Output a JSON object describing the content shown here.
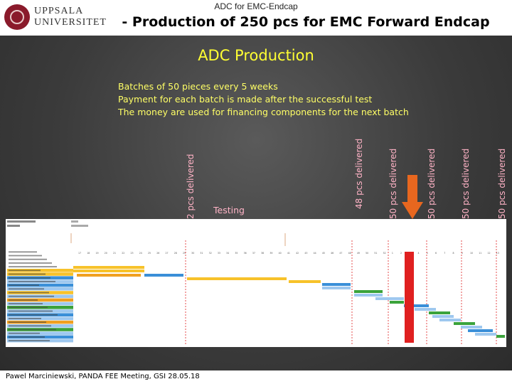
{
  "header": {
    "logo_text": "UPPSALA\nUNIVERSITET",
    "deck_title": "ADC for EMC-Endcap",
    "title": "- Production of 250 pcs for EMC Forward Endcap"
  },
  "slide": {
    "heading": "ADC Production",
    "bullets": [
      "Batches of 50 pieces every 5 weeks",
      "Payment for each batch is made after the successful test",
      "The money are used for financing components for the next batch"
    ],
    "milestones": [
      "2 pcs delivered",
      "48 pcs delivered",
      "50 pcs delivered",
      "50 pcs delivered",
      "50 pcs delivered",
      "50 pcs delivered"
    ],
    "testing_label": "Testing"
  },
  "gantt": {
    "weeks": [
      "17",
      "18",
      "19",
      "20",
      "21",
      "22",
      "23",
      "24",
      "25",
      "26",
      "27",
      "28",
      "29",
      "30",
      "31",
      "32",
      "33",
      "34",
      "35",
      "36",
      "37",
      "38",
      "39",
      "40",
      "41",
      "42",
      "43",
      "44",
      "45",
      "46",
      "47",
      "48",
      "49",
      "50",
      "51",
      "52",
      "1",
      "2",
      "3",
      "4",
      "5",
      "6",
      "7",
      "8",
      "9",
      "10",
      "11",
      "12",
      "13"
    ],
    "colors": {
      "yellow": "#f7c22a",
      "blue": "#3a8fd8",
      "orange": "#f0a020",
      "green": "#3ba33b",
      "red": "#e02020",
      "light_blue": "#9ec8ef"
    }
  },
  "footer": {
    "text": "Pawel Marciniewski, PANDA FEE Meeting, GSI 28.05.18"
  }
}
